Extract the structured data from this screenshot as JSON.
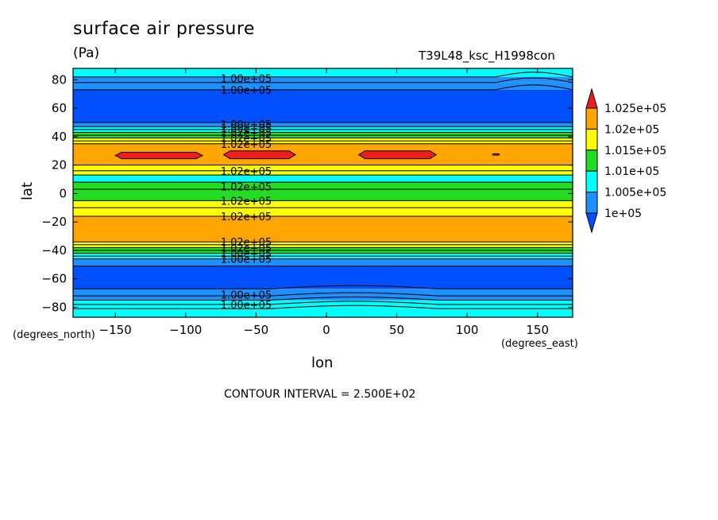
{
  "chart_data": {
    "type": "contour",
    "title": "surface air pressure",
    "units": "(Pa)",
    "run_id": "T39L48_ksc_H1998con",
    "xlabel": "lon",
    "ylabel": "lat",
    "x_units": "(degrees_east)",
    "y_units": "(degrees_north)",
    "xlim": [
      -180,
      175
    ],
    "ylim": [
      -87,
      88
    ],
    "x_ticks": [
      -150,
      -100,
      -50,
      0,
      50,
      100,
      150
    ],
    "x_tick_labels": [
      "−150",
      "−100",
      "−50",
      "0",
      "50",
      "100",
      "150"
    ],
    "y_ticks": [
      80,
      60,
      40,
      20,
      0,
      -20,
      -40,
      -60,
      -80
    ],
    "y_tick_labels": [
      "80",
      "60",
      "40",
      "20",
      "0",
      "−20",
      "−40",
      "−60",
      "−80"
    ],
    "contour_interval_text": "CONTOUR INTERVAL = 2.500E+02",
    "colorbar": {
      "labels": [
        "1.025e+05",
        "1.02e+05",
        "1.015e+05",
        "1.01e+05",
        "1.005e+05",
        "1e+05"
      ],
      "colors": [
        "#ee1e1e",
        "#ffa500",
        "#ffff00",
        "#22dd22",
        "#00ffff",
        "#1e90ff",
        "#0050ff"
      ]
    },
    "bands": [
      {
        "lat_from": 88,
        "lat_to": 82,
        "color": "#00ffff"
      },
      {
        "lat_from": 82,
        "lat_to": 78,
        "color": "#1e90ff"
      },
      {
        "lat_from": 78,
        "lat_to": 73,
        "color": "#1e90ff"
      },
      {
        "lat_from": 73,
        "lat_to": 50,
        "color": "#0050ff"
      },
      {
        "lat_from": 50,
        "lat_to": 47,
        "color": "#1e90ff"
      },
      {
        "lat_from": 47,
        "lat_to": 43,
        "color": "#00ffff"
      },
      {
        "lat_from": 43,
        "lat_to": 39,
        "color": "#22dd22"
      },
      {
        "lat_from": 39,
        "lat_to": 35,
        "color": "#ffff00"
      },
      {
        "lat_from": 35,
        "lat_to": 20,
        "color": "#ffa500"
      },
      {
        "lat_from": 20,
        "lat_to": 13,
        "color": "#ffff00"
      },
      {
        "lat_from": 13,
        "lat_to": 8,
        "color": "#00ffff"
      },
      {
        "lat_from": 8,
        "lat_to": -5,
        "color": "#22dd22"
      },
      {
        "lat_from": -5,
        "lat_to": -16,
        "color": "#ffff00"
      },
      {
        "lat_from": -16,
        "lat_to": -34,
        "color": "#ffa500"
      },
      {
        "lat_from": -34,
        "lat_to": -38,
        "color": "#ffff00"
      },
      {
        "lat_from": -38,
        "lat_to": -42,
        "color": "#22dd22"
      },
      {
        "lat_from": -42,
        "lat_to": -46,
        "color": "#00ffff"
      },
      {
        "lat_from": -46,
        "lat_to": -51,
        "color": "#1e90ff"
      },
      {
        "lat_from": -51,
        "lat_to": -67,
        "color": "#0050ff"
      },
      {
        "lat_from": -67,
        "lat_to": -75,
        "color": "#1e90ff"
      },
      {
        "lat_from": -75,
        "lat_to": -81,
        "color": "#00ffff"
      },
      {
        "lat_from": -81,
        "lat_to": -87,
        "color": "#00ffff"
      }
    ],
    "contour_lats": [
      82,
      78,
      73,
      50,
      47,
      45,
      43,
      41,
      39,
      37,
      35,
      20,
      16,
      13,
      8,
      3,
      -5,
      -10,
      -16,
      -34,
      -36,
      -38,
      -40,
      -42,
      -44,
      -46,
      -51,
      -67,
      -72,
      -75,
      -78,
      -81
    ],
    "maxima_regions": [
      {
        "lon": [
          -150,
          -88
        ],
        "lat": [
          24.5,
          29
        ]
      },
      {
        "lon": [
          -73,
          -22
        ],
        "lat": [
          24.5,
          30
        ]
      },
      {
        "lon": [
          23,
          78
        ],
        "lat": [
          24.5,
          30
        ]
      },
      {
        "lon": [
          118,
          123
        ],
        "lat": [
          27,
          28
        ]
      }
    ],
    "contour_labels": [
      {
        "text": "1.00e+05",
        "lon": -57,
        "lat": 81
      },
      {
        "text": "1.00e+05",
        "lon": -57,
        "lat": 73
      },
      {
        "text": "1.00e+05",
        "lon": -57,
        "lat": 49
      },
      {
        "text": "1.00e+05",
        "lon": -57,
        "lat": 46
      },
      {
        "text": "1.02e+05",
        "lon": -57,
        "lat": 43
      },
      {
        "text": "1.02e+05",
        "lon": -57,
        "lat": 39
      },
      {
        "text": "1.02e+05",
        "lon": -57,
        "lat": 35
      },
      {
        "text": "1.02e+05",
        "lon": -57,
        "lat": 16
      },
      {
        "text": "1.02e+05",
        "lon": -57,
        "lat": 5
      },
      {
        "text": "1.02e+05",
        "lon": -57,
        "lat": -5
      },
      {
        "text": "1.02e+05",
        "lon": -57,
        "lat": -16
      },
      {
        "text": "1.02e+05",
        "lon": -57,
        "lat": -34
      },
      {
        "text": "1.02e+05",
        "lon": -57,
        "lat": -38
      },
      {
        "text": "1.00e+05",
        "lon": -57,
        "lat": -42
      },
      {
        "text": "1.00e+05",
        "lon": -57,
        "lat": -46
      },
      {
        "text": "1.00e+05",
        "lon": -57,
        "lat": -71
      },
      {
        "text": "1.00e+05",
        "lon": -57,
        "lat": -78
      }
    ]
  }
}
